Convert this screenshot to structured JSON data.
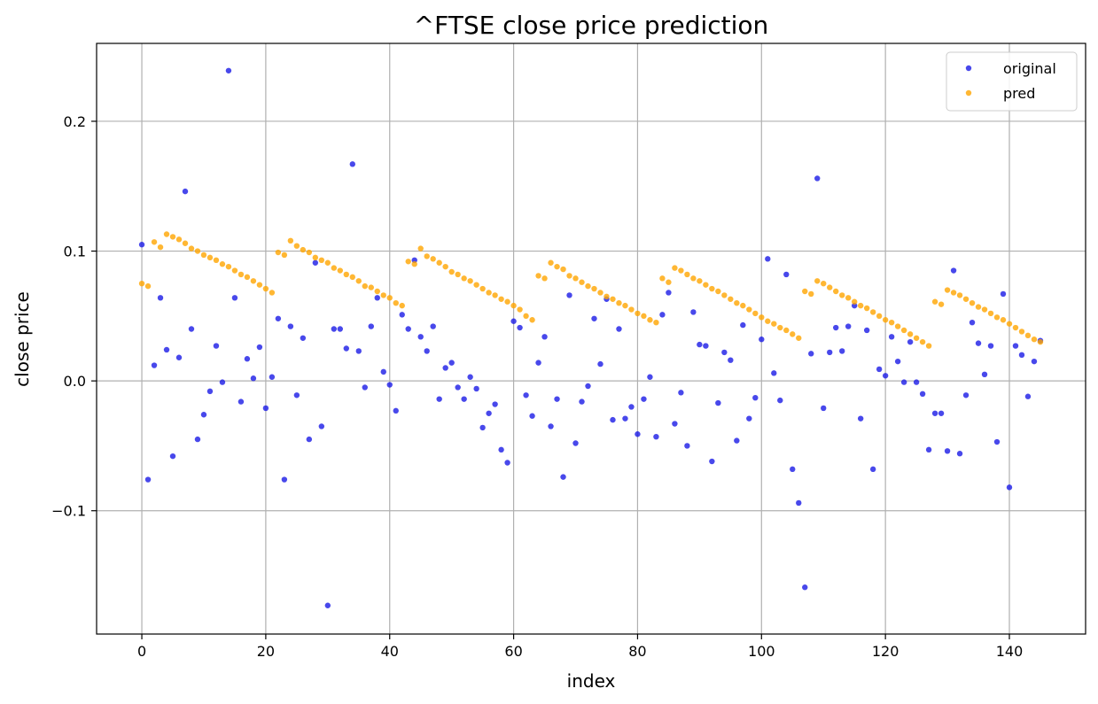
{
  "chart_data": {
    "type": "scatter",
    "title": "^FTSE close price prediction",
    "xlabel": "index",
    "ylabel": "close price",
    "xlim": [
      -7.3,
      152.3
    ],
    "ylim": [
      -0.195,
      0.26
    ],
    "xticks": [
      0,
      20,
      40,
      60,
      80,
      100,
      120,
      140
    ],
    "xtick_labels": [
      "0",
      "20",
      "40",
      "60",
      "80",
      "100",
      "120",
      "140"
    ],
    "yticks": [
      -0.1,
      0.0,
      0.1,
      0.2
    ],
    "ytick_labels": [
      "−0.1",
      "0.0",
      "0.1",
      "0.2"
    ],
    "grid": true,
    "legend_position": "top-right",
    "series": [
      {
        "name": "original",
        "color": "#1a1ae6",
        "x": [
          0,
          1,
          2,
          3,
          4,
          5,
          6,
          7,
          8,
          9,
          10,
          11,
          12,
          13,
          14,
          15,
          16,
          17,
          18,
          19,
          20,
          21,
          22,
          23,
          24,
          25,
          26,
          27,
          28,
          29,
          30,
          31,
          32,
          33,
          34,
          35,
          36,
          37,
          38,
          39,
          40,
          41,
          42,
          43,
          44,
          45,
          46,
          47,
          48,
          49,
          50,
          51,
          52,
          53,
          54,
          55,
          56,
          57,
          58,
          59,
          60,
          61,
          62,
          63,
          64,
          65,
          66,
          67,
          68,
          69,
          70,
          71,
          72,
          73,
          74,
          75,
          76,
          77,
          78,
          79,
          80,
          81,
          82,
          83,
          84,
          85,
          86,
          87,
          88,
          89,
          90,
          91,
          92,
          93,
          94,
          95,
          96,
          97,
          98,
          99,
          100,
          101,
          102,
          103,
          104,
          105,
          106,
          107,
          108,
          109,
          110,
          111,
          112,
          113,
          114,
          115,
          116,
          117,
          118,
          119,
          120,
          121,
          122,
          123,
          124,
          125,
          126,
          127,
          128,
          129,
          130,
          131,
          132,
          133,
          134,
          135,
          136,
          137,
          138,
          139,
          140,
          141,
          142,
          143,
          144,
          145
        ],
        "y": [
          0.105,
          -0.076,
          0.012,
          0.064,
          0.024,
          -0.058,
          0.018,
          0.146,
          0.04,
          -0.045,
          -0.026,
          -0.008,
          0.027,
          -0.001,
          0.239,
          0.064,
          -0.016,
          0.017,
          0.002,
          0.026,
          -0.021,
          0.003,
          0.048,
          -0.076,
          0.042,
          -0.011,
          0.033,
          -0.045,
          0.091,
          -0.035,
          -0.173,
          0.04,
          0.04,
          0.025,
          0.167,
          0.023,
          -0.005,
          0.042,
          0.064,
          0.007,
          -0.003,
          -0.023,
          0.051,
          0.04,
          0.093,
          0.034,
          0.023,
          0.042,
          -0.014,
          0.01,
          0.014,
          -0.005,
          -0.014,
          0.003,
          -0.006,
          -0.036,
          -0.025,
          -0.018,
          -0.053,
          -0.063,
          0.046,
          0.041,
          -0.011,
          -0.027,
          0.014,
          0.034,
          -0.035,
          -0.014,
          -0.074,
          0.066,
          -0.048,
          -0.016,
          -0.004,
          0.048,
          0.013,
          0.063,
          -0.03,
          0.04,
          -0.029,
          -0.02,
          -0.041,
          -0.014,
          0.003,
          -0.043,
          0.051,
          0.068,
          -0.033,
          -0.009,
          -0.05,
          0.053,
          0.028,
          0.027,
          -0.062,
          -0.017,
          0.022,
          0.016,
          -0.046,
          0.043,
          -0.029,
          -0.013,
          0.032,
          0.094,
          0.006,
          -0.015,
          0.082,
          -0.068,
          -0.094,
          -0.159,
          0.021,
          0.156,
          -0.021,
          0.022,
          0.041,
          0.023,
          0.042,
          0.058,
          -0.029,
          0.039,
          -0.068,
          0.009,
          0.004,
          0.034,
          0.015,
          -0.001,
          0.03,
          -0.001,
          -0.01,
          -0.053,
          -0.025,
          -0.025,
          -0.054,
          0.085,
          -0.056,
          -0.011,
          0.045,
          0.029,
          0.005,
          0.027,
          -0.047,
          0.067,
          -0.082,
          0.027,
          0.02,
          -0.012,
          0.015,
          0.031
        ]
      },
      {
        "name": "pred",
        "color": "#ffa500",
        "x": [
          0,
          1,
          2,
          3,
          4,
          5,
          6,
          7,
          8,
          9,
          10,
          11,
          12,
          13,
          14,
          15,
          16,
          17,
          18,
          19,
          20,
          21,
          22,
          23,
          24,
          25,
          26,
          27,
          28,
          29,
          30,
          31,
          32,
          33,
          34,
          35,
          36,
          37,
          38,
          39,
          40,
          41,
          42,
          43,
          44,
          45,
          46,
          47,
          48,
          49,
          50,
          51,
          52,
          53,
          54,
          55,
          56,
          57,
          58,
          59,
          60,
          61,
          62,
          63,
          64,
          65,
          66,
          67,
          68,
          69,
          70,
          71,
          72,
          73,
          74,
          75,
          76,
          77,
          78,
          79,
          80,
          81,
          82,
          83,
          84,
          85,
          86,
          87,
          88,
          89,
          90,
          91,
          92,
          93,
          94,
          95,
          96,
          97,
          98,
          99,
          100,
          101,
          102,
          103,
          104,
          105,
          106,
          107,
          108,
          109,
          110,
          111,
          112,
          113,
          114,
          115,
          116,
          117,
          118,
          119,
          120,
          121,
          122,
          123,
          124,
          125,
          126,
          127,
          128,
          129,
          130,
          131,
          132,
          133,
          134,
          135,
          136,
          137,
          138,
          139,
          140,
          141,
          142,
          143,
          144,
          145
        ],
        "y": [
          0.075,
          0.073,
          0.107,
          0.103,
          0.113,
          0.111,
          0.109,
          0.106,
          0.102,
          0.1,
          0.097,
          0.095,
          0.093,
          0.09,
          0.088,
          0.085,
          0.082,
          0.08,
          0.077,
          0.074,
          0.071,
          0.068,
          0.099,
          0.097,
          0.108,
          0.104,
          0.101,
          0.099,
          0.095,
          0.093,
          0.091,
          0.087,
          0.085,
          0.082,
          0.08,
          0.077,
          0.073,
          0.072,
          0.069,
          0.066,
          0.064,
          0.06,
          0.058,
          0.092,
          0.09,
          0.102,
          0.096,
          0.094,
          0.091,
          0.088,
          0.084,
          0.082,
          0.079,
          0.077,
          0.074,
          0.071,
          0.068,
          0.066,
          0.063,
          0.061,
          0.058,
          0.055,
          0.05,
          0.047,
          0.081,
          0.079,
          0.091,
          0.088,
          0.086,
          0.081,
          0.079,
          0.076,
          0.073,
          0.071,
          0.068,
          0.065,
          0.063,
          0.06,
          0.058,
          0.055,
          0.052,
          0.05,
          0.047,
          0.045,
          0.079,
          0.076,
          0.087,
          0.085,
          0.082,
          0.079,
          0.077,
          0.074,
          0.071,
          0.069,
          0.066,
          0.063,
          0.06,
          0.058,
          0.055,
          0.052,
          0.049,
          0.046,
          0.044,
          0.041,
          0.039,
          0.036,
          0.033,
          0.069,
          0.067,
          0.077,
          0.075,
          0.072,
          0.069,
          0.066,
          0.064,
          0.061,
          0.058,
          0.056,
          0.053,
          0.05,
          0.047,
          0.045,
          0.042,
          0.039,
          0.036,
          0.033,
          0.03,
          0.027,
          0.061,
          0.059,
          0.07,
          0.068,
          0.066,
          0.063,
          0.06,
          0.057,
          0.055,
          0.052,
          0.049,
          0.047,
          0.044,
          0.041,
          0.038,
          0.035,
          0.032,
          0.03
        ]
      }
    ]
  }
}
